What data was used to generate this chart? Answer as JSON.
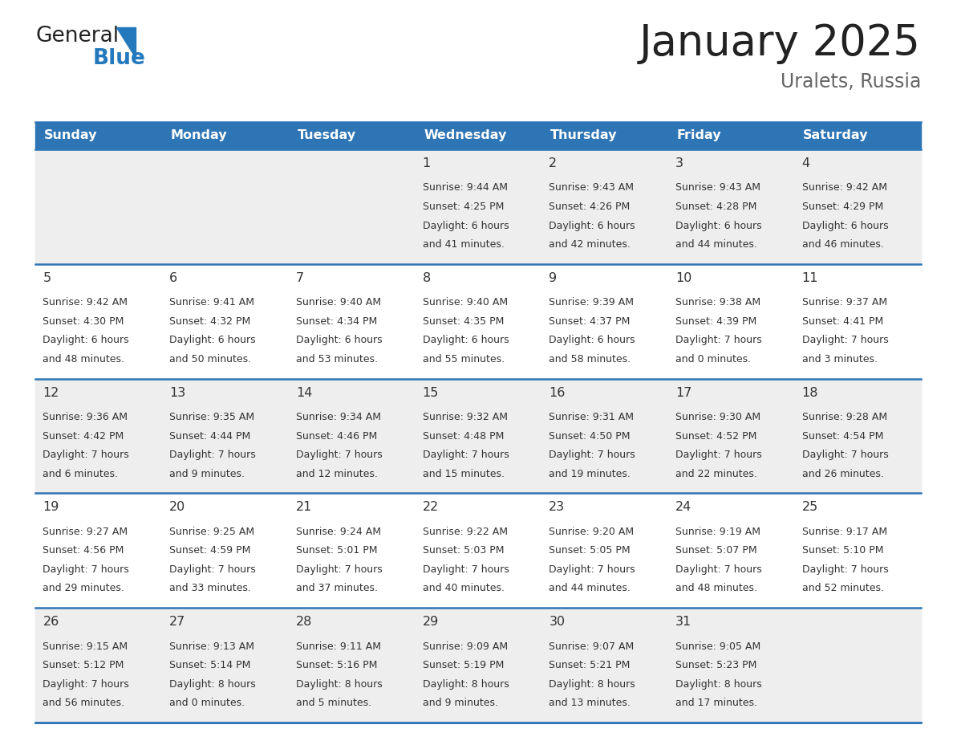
{
  "title": "January 2025",
  "subtitle": "Uralets, Russia",
  "header_bg": "#2E75B6",
  "header_text_color": "#FFFFFF",
  "day_names": [
    "Sunday",
    "Monday",
    "Tuesday",
    "Wednesday",
    "Thursday",
    "Friday",
    "Saturday"
  ],
  "row_bg_odd": "#EEEEEE",
  "row_bg_even": "#FFFFFF",
  "cell_text_color": "#333333",
  "date_num_color": "#333333",
  "divider_color": "#2E75B6",
  "logo_general_color": "#222222",
  "logo_blue_color": "#2479BD",
  "title_color": "#222222",
  "subtitle_color": "#666666",
  "calendar_data": [
    [
      {
        "date": "",
        "sunrise": "",
        "sunset": "",
        "daylight_h": "",
        "daylight_m": ""
      },
      {
        "date": "",
        "sunrise": "",
        "sunset": "",
        "daylight_h": "",
        "daylight_m": ""
      },
      {
        "date": "",
        "sunrise": "",
        "sunset": "",
        "daylight_h": "",
        "daylight_m": ""
      },
      {
        "date": "1",
        "sunrise": "9:44 AM",
        "sunset": "4:25 PM",
        "daylight_h": "6 hours",
        "daylight_m": "and 41 minutes."
      },
      {
        "date": "2",
        "sunrise": "9:43 AM",
        "sunset": "4:26 PM",
        "daylight_h": "6 hours",
        "daylight_m": "and 42 minutes."
      },
      {
        "date": "3",
        "sunrise": "9:43 AM",
        "sunset": "4:28 PM",
        "daylight_h": "6 hours",
        "daylight_m": "and 44 minutes."
      },
      {
        "date": "4",
        "sunrise": "9:42 AM",
        "sunset": "4:29 PM",
        "daylight_h": "6 hours",
        "daylight_m": "and 46 minutes."
      }
    ],
    [
      {
        "date": "5",
        "sunrise": "9:42 AM",
        "sunset": "4:30 PM",
        "daylight_h": "6 hours",
        "daylight_m": "and 48 minutes."
      },
      {
        "date": "6",
        "sunrise": "9:41 AM",
        "sunset": "4:32 PM",
        "daylight_h": "6 hours",
        "daylight_m": "and 50 minutes."
      },
      {
        "date": "7",
        "sunrise": "9:40 AM",
        "sunset": "4:34 PM",
        "daylight_h": "6 hours",
        "daylight_m": "and 53 minutes."
      },
      {
        "date": "8",
        "sunrise": "9:40 AM",
        "sunset": "4:35 PM",
        "daylight_h": "6 hours",
        "daylight_m": "and 55 minutes."
      },
      {
        "date": "9",
        "sunrise": "9:39 AM",
        "sunset": "4:37 PM",
        "daylight_h": "6 hours",
        "daylight_m": "and 58 minutes."
      },
      {
        "date": "10",
        "sunrise": "9:38 AM",
        "sunset": "4:39 PM",
        "daylight_h": "7 hours",
        "daylight_m": "and 0 minutes."
      },
      {
        "date": "11",
        "sunrise": "9:37 AM",
        "sunset": "4:41 PM",
        "daylight_h": "7 hours",
        "daylight_m": "and 3 minutes."
      }
    ],
    [
      {
        "date": "12",
        "sunrise": "9:36 AM",
        "sunset": "4:42 PM",
        "daylight_h": "7 hours",
        "daylight_m": "and 6 minutes."
      },
      {
        "date": "13",
        "sunrise": "9:35 AM",
        "sunset": "4:44 PM",
        "daylight_h": "7 hours",
        "daylight_m": "and 9 minutes."
      },
      {
        "date": "14",
        "sunrise": "9:34 AM",
        "sunset": "4:46 PM",
        "daylight_h": "7 hours",
        "daylight_m": "and 12 minutes."
      },
      {
        "date": "15",
        "sunrise": "9:32 AM",
        "sunset": "4:48 PM",
        "daylight_h": "7 hours",
        "daylight_m": "and 15 minutes."
      },
      {
        "date": "16",
        "sunrise": "9:31 AM",
        "sunset": "4:50 PM",
        "daylight_h": "7 hours",
        "daylight_m": "and 19 minutes."
      },
      {
        "date": "17",
        "sunrise": "9:30 AM",
        "sunset": "4:52 PM",
        "daylight_h": "7 hours",
        "daylight_m": "and 22 minutes."
      },
      {
        "date": "18",
        "sunrise": "9:28 AM",
        "sunset": "4:54 PM",
        "daylight_h": "7 hours",
        "daylight_m": "and 26 minutes."
      }
    ],
    [
      {
        "date": "19",
        "sunrise": "9:27 AM",
        "sunset": "4:56 PM",
        "daylight_h": "7 hours",
        "daylight_m": "and 29 minutes."
      },
      {
        "date": "20",
        "sunrise": "9:25 AM",
        "sunset": "4:59 PM",
        "daylight_h": "7 hours",
        "daylight_m": "and 33 minutes."
      },
      {
        "date": "21",
        "sunrise": "9:24 AM",
        "sunset": "5:01 PM",
        "daylight_h": "7 hours",
        "daylight_m": "and 37 minutes."
      },
      {
        "date": "22",
        "sunrise": "9:22 AM",
        "sunset": "5:03 PM",
        "daylight_h": "7 hours",
        "daylight_m": "and 40 minutes."
      },
      {
        "date": "23",
        "sunrise": "9:20 AM",
        "sunset": "5:05 PM",
        "daylight_h": "7 hours",
        "daylight_m": "and 44 minutes."
      },
      {
        "date": "24",
        "sunrise": "9:19 AM",
        "sunset": "5:07 PM",
        "daylight_h": "7 hours",
        "daylight_m": "and 48 minutes."
      },
      {
        "date": "25",
        "sunrise": "9:17 AM",
        "sunset": "5:10 PM",
        "daylight_h": "7 hours",
        "daylight_m": "and 52 minutes."
      }
    ],
    [
      {
        "date": "26",
        "sunrise": "9:15 AM",
        "sunset": "5:12 PM",
        "daylight_h": "7 hours",
        "daylight_m": "and 56 minutes."
      },
      {
        "date": "27",
        "sunrise": "9:13 AM",
        "sunset": "5:14 PM",
        "daylight_h": "8 hours",
        "daylight_m": "and 0 minutes."
      },
      {
        "date": "28",
        "sunrise": "9:11 AM",
        "sunset": "5:16 PM",
        "daylight_h": "8 hours",
        "daylight_m": "and 5 minutes."
      },
      {
        "date": "29",
        "sunrise": "9:09 AM",
        "sunset": "5:19 PM",
        "daylight_h": "8 hours",
        "daylight_m": "and 9 minutes."
      },
      {
        "date": "30",
        "sunrise": "9:07 AM",
        "sunset": "5:21 PM",
        "daylight_h": "8 hours",
        "daylight_m": "and 13 minutes."
      },
      {
        "date": "31",
        "sunrise": "9:05 AM",
        "sunset": "5:23 PM",
        "daylight_h": "8 hours",
        "daylight_m": "and 17 minutes."
      },
      {
        "date": "",
        "sunrise": "",
        "sunset": "",
        "daylight_h": "",
        "daylight_m": ""
      }
    ]
  ]
}
